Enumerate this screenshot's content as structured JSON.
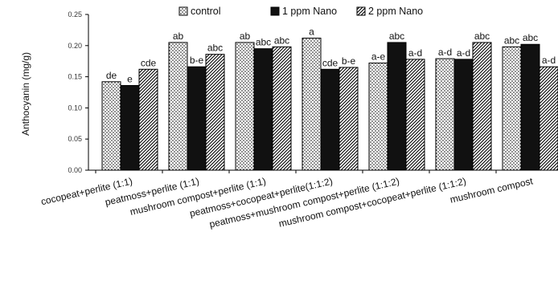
{
  "chart_data": {
    "type": "bar",
    "title": "",
    "ylabel": "Anthocyanin (mg/g)",
    "xlabel": "",
    "ylim": [
      0,
      0.25
    ],
    "yticks": [
      "0.00",
      "0.05",
      "0.10",
      "0.15",
      "0.20",
      "0.25"
    ],
    "grid": false,
    "legend_position": "top",
    "categories": [
      "cocopeat+perlite (1:1)",
      "peatmoss+perlite (1:1)",
      "mushroom compost+perlite (1:1)",
      "peatmoss+cocopeat+perlite(1:1:2)",
      "peatmoss+mushroom compost+perlite (1:1:2)",
      "mushroom compost+cocopeat+perlite (1:1:2)",
      "mushroom compost"
    ],
    "series": [
      {
        "name": "control",
        "pattern": "dots",
        "values": [
          0.142,
          0.205,
          0.205,
          0.212,
          0.172,
          0.179,
          0.198
        ],
        "labels": [
          "de",
          "ab",
          "ab",
          "a",
          "a-e",
          "a-d",
          "abc"
        ]
      },
      {
        "name": "1 ppm Nano",
        "pattern": "solid",
        "values": [
          0.136,
          0.166,
          0.195,
          0.162,
          0.205,
          0.178,
          0.202
        ],
        "labels": [
          "e",
          "b-e",
          "abc",
          "cde",
          "abc",
          "a-d",
          "abc"
        ]
      },
      {
        "name": "2 ppm Nano",
        "pattern": "hatch",
        "values": [
          0.162,
          0.186,
          0.198,
          0.165,
          0.178,
          0.205,
          0.166
        ],
        "labels": [
          "cde",
          "abc",
          "abc",
          "b-e",
          "a-d",
          "abc",
          "a-d"
        ]
      }
    ],
    "colors": {
      "solid": "#111111",
      "outline": "#000000"
    }
  }
}
